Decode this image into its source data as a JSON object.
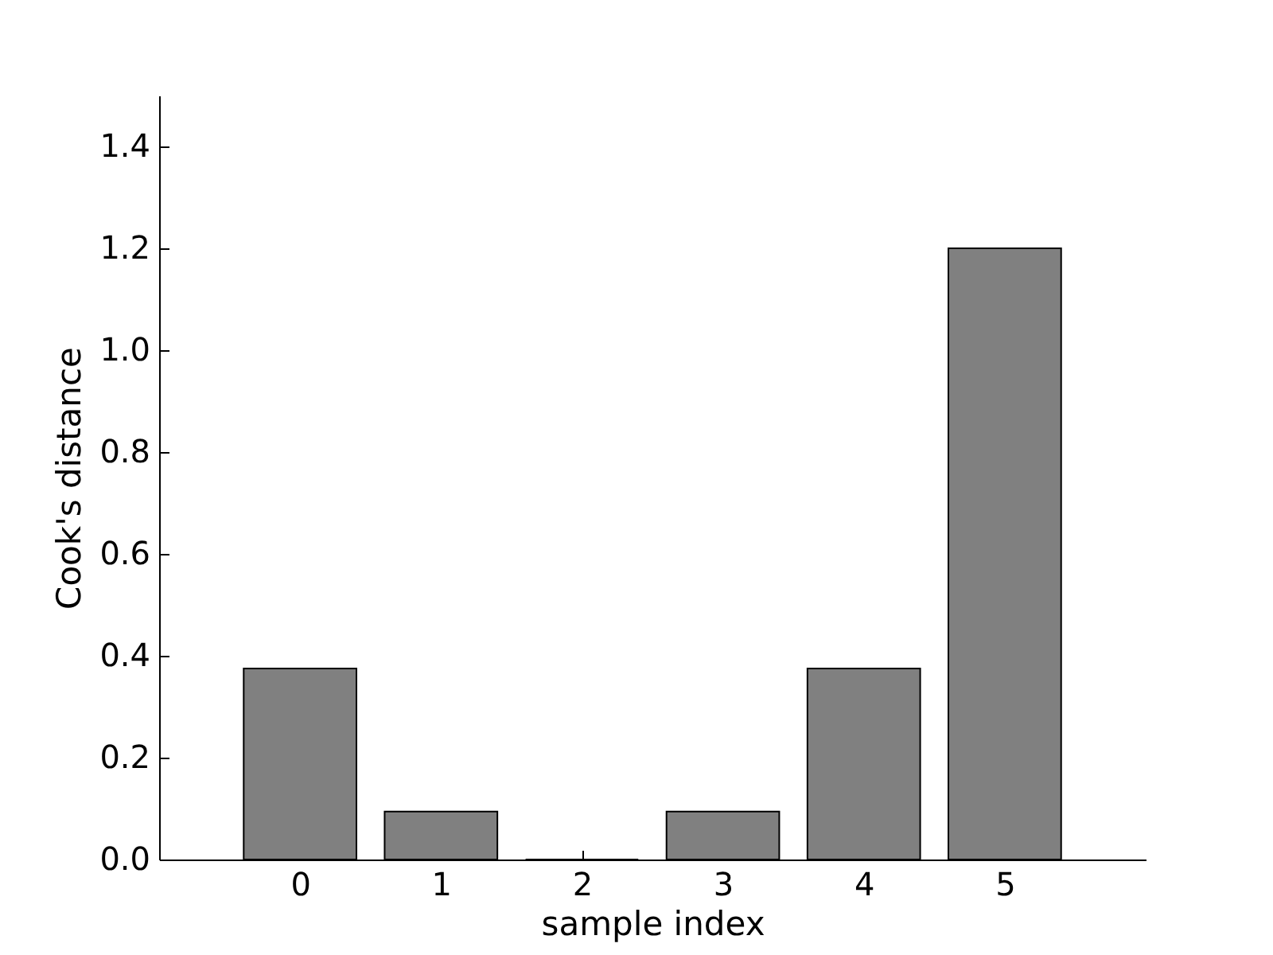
{
  "chart_data": {
    "type": "bar",
    "xlabel": "sample index",
    "ylabel": "Cook's distance",
    "x": [
      0,
      1,
      2,
      3,
      4,
      5
    ],
    "values": [
      0.375,
      0.094,
      0,
      0.094,
      0.375,
      1.2
    ],
    "color": "#808080",
    "xlim": [
      -1,
      6
    ],
    "xticks": [
      0,
      1,
      2,
      3,
      4,
      5
    ],
    "ylim": [
      0,
      1.5
    ],
    "yticks": [
      {
        "value": 0,
        "label": "0.0"
      },
      0.2,
      0.4,
      0.6,
      0.8,
      {
        "value": 1,
        "label": "1.0"
      },
      1.2,
      1.4
    ],
    "grid": false
  }
}
